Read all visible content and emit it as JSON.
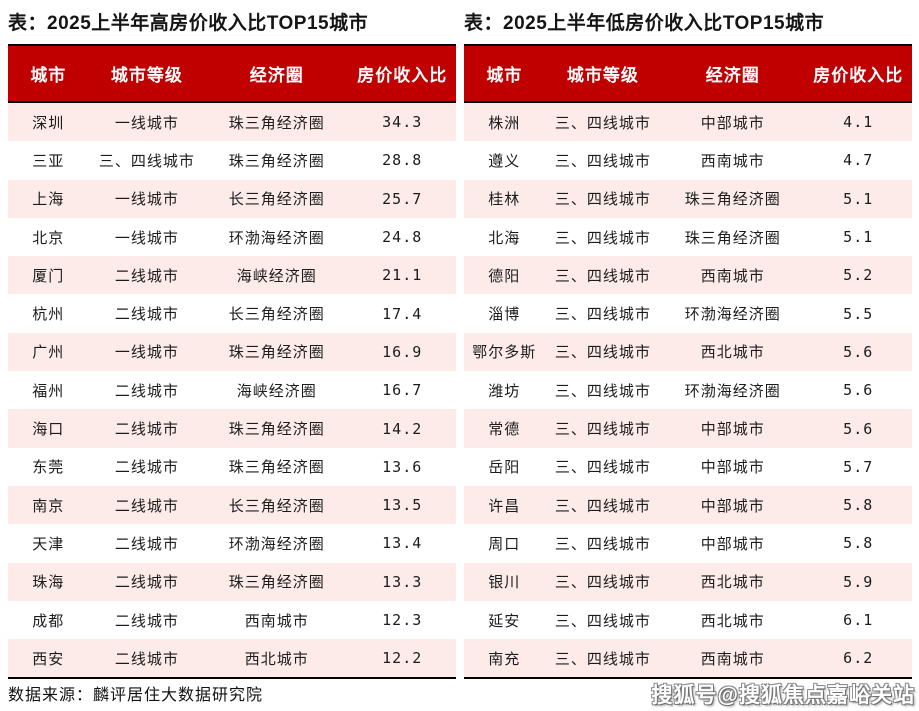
{
  "chart_data": [
    {
      "type": "table",
      "title": "表：2025上半年高房价收入比TOP15城市",
      "columns": [
        "城市",
        "城市等级",
        "经济圈",
        "房价收入比"
      ],
      "rows": [
        [
          "深圳",
          "一线城市",
          "珠三角经济圈",
          "34.3"
        ],
        [
          "三亚",
          "三、四线城市",
          "珠三角经济圈",
          "28.8"
        ],
        [
          "上海",
          "一线城市",
          "长三角经济圈",
          "25.7"
        ],
        [
          "北京",
          "一线城市",
          "环渤海经济圈",
          "24.8"
        ],
        [
          "厦门",
          "二线城市",
          "海峡经济圈",
          "21.1"
        ],
        [
          "杭州",
          "二线城市",
          "长三角经济圈",
          "17.4"
        ],
        [
          "广州",
          "一线城市",
          "珠三角经济圈",
          "16.9"
        ],
        [
          "福州",
          "二线城市",
          "海峡经济圈",
          "16.7"
        ],
        [
          "海口",
          "二线城市",
          "珠三角经济圈",
          "14.2"
        ],
        [
          "东莞",
          "二线城市",
          "珠三角经济圈",
          "13.6"
        ],
        [
          "南京",
          "二线城市",
          "长三角经济圈",
          "13.5"
        ],
        [
          "天津",
          "二线城市",
          "环渤海经济圈",
          "13.4"
        ],
        [
          "珠海",
          "二线城市",
          "珠三角经济圈",
          "13.3"
        ],
        [
          "成都",
          "二线城市",
          "西南城市",
          "12.3"
        ],
        [
          "西安",
          "二线城市",
          "西北城市",
          "12.2"
        ]
      ]
    },
    {
      "type": "table",
      "title": "表：2025上半年低房价收入比TOP15城市",
      "columns": [
        "城市",
        "城市等级",
        "经济圈",
        "房价收入比"
      ],
      "rows": [
        [
          "株洲",
          "三、四线城市",
          "中部城市",
          "4.1"
        ],
        [
          "遵义",
          "三、四线城市",
          "西南城市",
          "4.7"
        ],
        [
          "桂林",
          "三、四线城市",
          "珠三角经济圈",
          "5.1"
        ],
        [
          "北海",
          "三、四线城市",
          "珠三角经济圈",
          "5.1"
        ],
        [
          "德阳",
          "三、四线城市",
          "西南城市",
          "5.2"
        ],
        [
          "淄博",
          "三、四线城市",
          "环渤海经济圈",
          "5.5"
        ],
        [
          "鄂尔多斯",
          "三、四线城市",
          "西北城市",
          "5.6"
        ],
        [
          "潍坊",
          "三、四线城市",
          "环渤海经济圈",
          "5.6"
        ],
        [
          "常德",
          "三、四线城市",
          "中部城市",
          "5.6"
        ],
        [
          "岳阳",
          "三、四线城市",
          "中部城市",
          "5.7"
        ],
        [
          "许昌",
          "三、四线城市",
          "中部城市",
          "5.8"
        ],
        [
          "周口",
          "三、四线城市",
          "中部城市",
          "5.8"
        ],
        [
          "银川",
          "三、四线城市",
          "西北城市",
          "5.9"
        ],
        [
          "延安",
          "三、四线城市",
          "西北城市",
          "6.1"
        ],
        [
          "南充",
          "三、四线城市",
          "西南城市",
          "6.2"
        ]
      ]
    }
  ],
  "footer": {
    "source": "数据来源：麟评居住大数据研究院",
    "watermark": "搜狐号@搜狐焦点嘉峪关站"
  },
  "colors": {
    "header_bg": "#C00000",
    "header_text": "#FFFFFF",
    "row_alt_bg": "#FCEBE9",
    "row_bg": "#FFFFFF",
    "border": "#000000"
  }
}
